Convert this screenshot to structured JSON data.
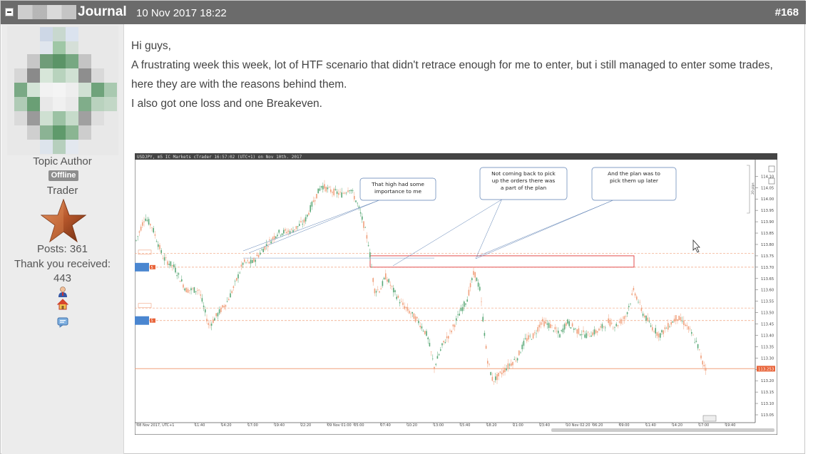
{
  "header": {
    "author": "Journal",
    "date": "10 Nov 2017 18:22",
    "post_number": "#168"
  },
  "sidebar": {
    "role": "Topic Author",
    "status": "Offline",
    "rank": "Trader",
    "posts_label": "Posts: 361",
    "thanks_label": "Thank you received:",
    "thanks_count": "443",
    "icons": [
      "user-icon",
      "home-icon",
      "message-icon"
    ]
  },
  "post": {
    "lines": [
      "Hi guys,",
      "A frustrating week this week, lot of HTF scenario that didn't retrace enough for me to enter, but i still managed to enter some trades, here they are with the reasons behind them.",
      "I also got one loss and one Breakeven."
    ]
  },
  "chart_data": {
    "type": "candlestick",
    "title": "USDJPY, m5 IC Markets cTrader 16:57:02 (UTC+1) on Nov 10th. 2017",
    "x_tick_labels": [
      "08 Nov 2017, UTC+1",
      "11:40",
      "14:20",
      "17:00",
      "19:40",
      "22:20",
      "09 Nov 01:00",
      "05:00",
      "07:40",
      "10:20",
      "13:00",
      "15:40",
      "18:20",
      "21:00",
      "23:40",
      "10 Nov 02:20",
      "06:20",
      "09:00",
      "11:40",
      "14:20",
      "17:00",
      "19:40"
    ],
    "y_tick_labels": [
      "114.10",
      "114.05",
      "114.00",
      "113.95",
      "113.90",
      "113.85",
      "113.80",
      "113.75",
      "113.70",
      "113.65",
      "113.60",
      "113.55",
      "113.50",
      "113.45",
      "113.40",
      "113.35",
      "113.30",
      "113.25",
      "113.20",
      "113.15",
      "113.10",
      "113.05"
    ],
    "ylim": [
      113.05,
      114.12
    ],
    "current_price": "113.253",
    "scale_label": "20 pips",
    "order_labels": [
      "5",
      "5"
    ],
    "annotations": [
      "That high had some importance to me",
      "Not coming back to pick up the orders there was a part of the plan",
      "And the plan was to pick them up later"
    ],
    "series_colors": {
      "up": "#5aa877",
      "down": "#f0a07c",
      "box": "#e03a3a",
      "hline": "#f0a07c"
    }
  }
}
